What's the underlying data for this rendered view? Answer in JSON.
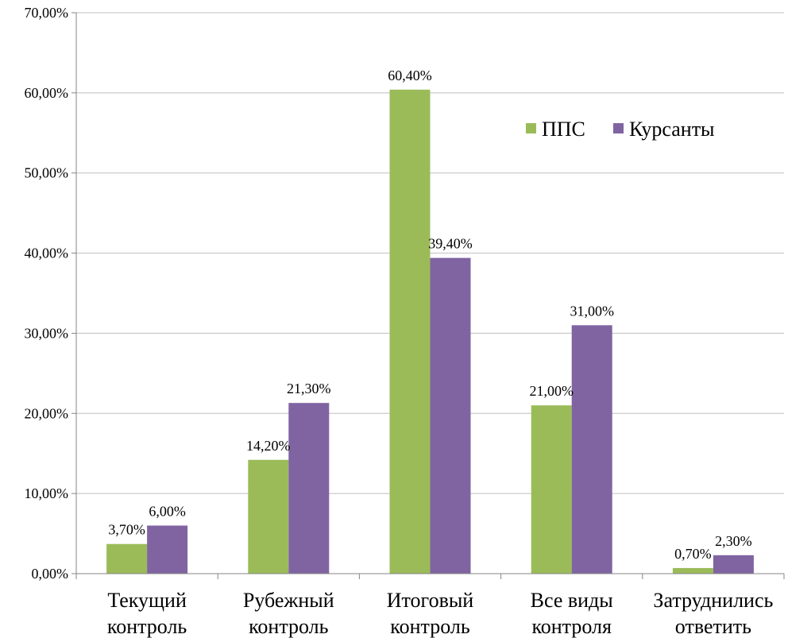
{
  "chart_data": {
    "type": "bar",
    "categories": [
      [
        "Текущий",
        "контроль"
      ],
      [
        "Рубежный",
        "контроль"
      ],
      [
        "Итоговый",
        "контроль"
      ],
      [
        "Все виды",
        "контроля"
      ],
      [
        "Затруднились",
        "ответить"
      ]
    ],
    "series": [
      {
        "name": "ППС",
        "color": "#9bbb59",
        "values": [
          3.7,
          14.2,
          60.4,
          21.0,
          0.7
        ],
        "value_labels": [
          "3,70%",
          "14,20%",
          "60,40%",
          "21,00%",
          "0,70%"
        ]
      },
      {
        "name": "Курсанты",
        "color": "#8064a2",
        "values": [
          6.0,
          21.3,
          39.4,
          31.0,
          2.3
        ],
        "value_labels": [
          "6,00%",
          "21,30%",
          "39,40%",
          "31,00%",
          "2,30%"
        ]
      }
    ],
    "ylim": [
      0,
      70
    ],
    "yticks": [
      "0,00%",
      "10,00%",
      "20,00%",
      "30,00%",
      "40,00%",
      "50,00%",
      "60,00%",
      "70,00%"
    ],
    "grid": true,
    "legend_position": "top-right",
    "xlabel": "",
    "ylabel": "",
    "title": ""
  }
}
